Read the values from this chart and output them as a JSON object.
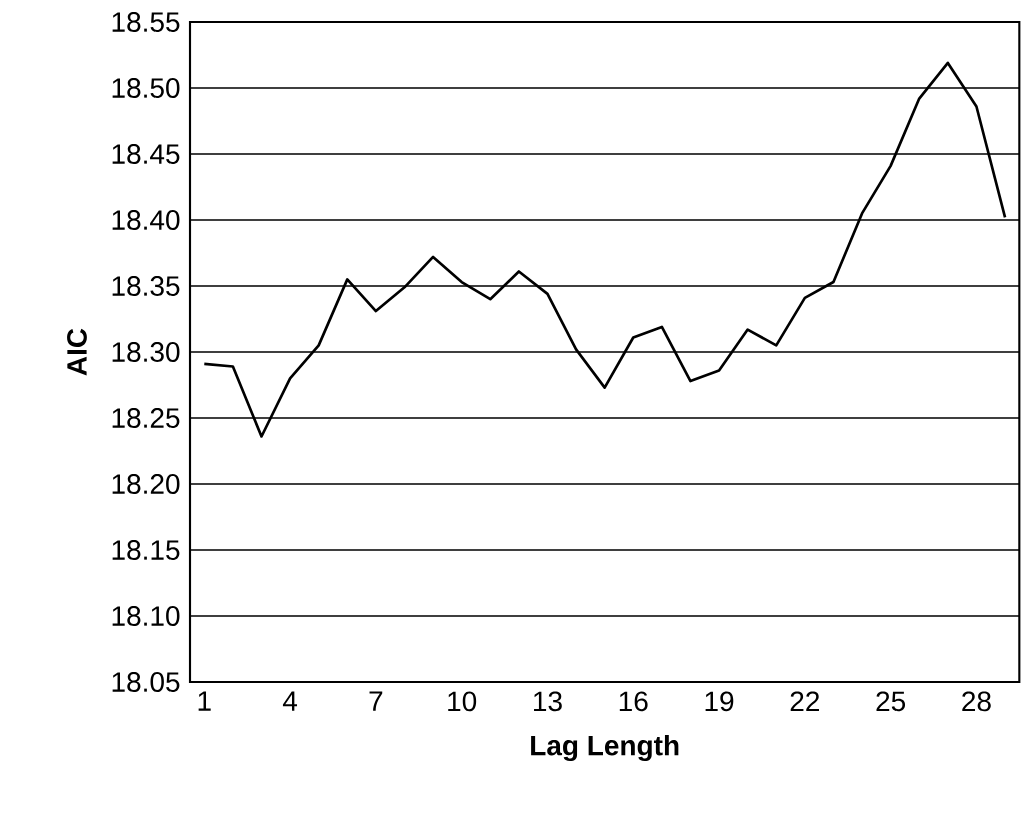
{
  "chart_data": {
    "type": "line",
    "xlabel": "Lag Length",
    "ylabel": "AIC",
    "categories": [
      "1",
      null,
      null,
      "4",
      null,
      null,
      "7",
      null,
      null,
      "10",
      null,
      null,
      "13",
      null,
      null,
      "16",
      null,
      null,
      "19",
      null,
      null,
      "22",
      null,
      null,
      "25",
      null,
      null,
      "28",
      null
    ],
    "series": [
      {
        "color": "#000000",
        "values": [
          18.291,
          18.289,
          18.236,
          18.28,
          18.305,
          18.355,
          18.331,
          18.349,
          18.372,
          18.353,
          18.34,
          18.361,
          18.344,
          18.302,
          18.273,
          18.311,
          18.319,
          18.278,
          18.286,
          18.317,
          18.305,
          18.341,
          18.353,
          18.405,
          18.441,
          18.492,
          18.519,
          18.486,
          18.402
        ]
      }
    ],
    "ylim": [
      18.05,
      18.55
    ],
    "yticks": [
      {
        "value": 18.05,
        "label": "18.05"
      },
      {
        "value": 18.1,
        "label": "18.10"
      },
      {
        "value": 18.15,
        "label": "18.15"
      },
      {
        "value": 18.2,
        "label": "18.20"
      },
      {
        "value": 18.25,
        "label": "18.25"
      },
      {
        "value": 18.3,
        "label": "18.30"
      },
      {
        "value": 18.35,
        "label": "18.35"
      },
      {
        "value": 18.4,
        "label": "18.40"
      },
      {
        "value": 18.45,
        "label": "18.45"
      },
      {
        "value": 18.5,
        "label": "18.50"
      },
      {
        "value": 18.55,
        "label": "18.55"
      }
    ],
    "grid": "y",
    "marker": "none",
    "line_style": "solid"
  }
}
